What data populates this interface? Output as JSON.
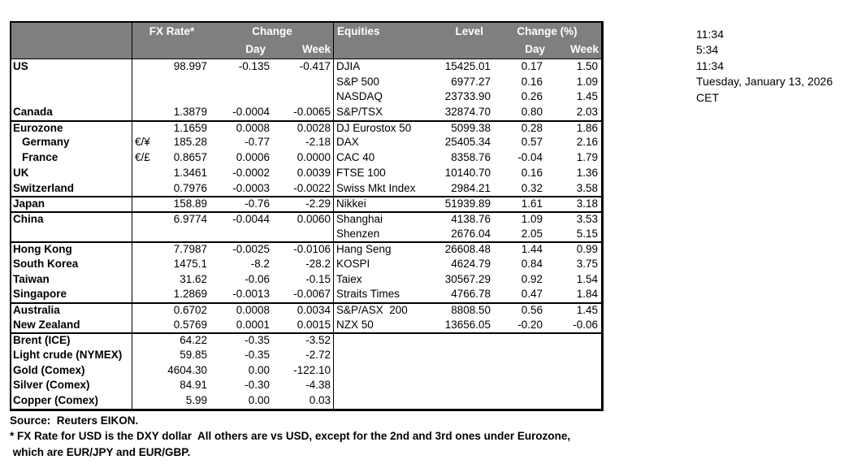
{
  "colors": {
    "header_bg": "#7f7f7f",
    "header_text": "#ffffff",
    "border": "#000000",
    "background": "#ffffff"
  },
  "table": {
    "header": {
      "fx_rate": "FX Rate*",
      "change": "Change",
      "day_fx": "Day",
      "week_fx": "Week",
      "equities": "Equities",
      "level": "Level",
      "change_pct": "Change (%)",
      "day_eq": "Day",
      "week_eq": "Week"
    },
    "rows": [
      {
        "country": "US",
        "indent": false,
        "sym": "",
        "rate": "98.997",
        "day": "-0.135",
        "week": "-0.417",
        "eq": "DJIA",
        "level": "15425.01",
        "eday": "0.17",
        "eweek": "1.50",
        "sep": false
      },
      {
        "country": "",
        "indent": false,
        "sym": "",
        "rate": "",
        "day": "",
        "week": "",
        "eq": "S&P 500",
        "level": "6977.27",
        "eday": "0.16",
        "eweek": "1.09",
        "sep": false
      },
      {
        "country": "",
        "indent": false,
        "sym": "",
        "rate": "",
        "day": "",
        "week": "",
        "eq": "NASDAQ",
        "level": "23733.90",
        "eday": "0.26",
        "eweek": "1.45",
        "sep": false
      },
      {
        "country": "Canada",
        "indent": false,
        "sym": "",
        "rate": "1.3879",
        "day": "-0.0004",
        "week": "-0.0065",
        "eq": "S&P/TSX",
        "level": "32874.70",
        "eday": "0.80",
        "eweek": "2.03",
        "sep": false
      },
      {
        "country": "Eurozone",
        "indent": false,
        "sym": "",
        "rate": "1.1659",
        "day": "0.0008",
        "week": "0.0028",
        "eq": "DJ Eurostox 50",
        "level": "5099.38",
        "eday": "0.28",
        "eweek": "1.86",
        "sep": true
      },
      {
        "country": "Germany",
        "indent": true,
        "sym": "€/¥",
        "rate": "185.28",
        "day": "-0.77",
        "week": "-2.18",
        "eq": "DAX",
        "level": "25405.34",
        "eday": "0.57",
        "eweek": "2.16",
        "sep": false
      },
      {
        "country": "France",
        "indent": true,
        "sym": "€/£",
        "rate": "0.8657",
        "day": "0.0006",
        "week": "0.0000",
        "eq": "CAC 40",
        "level": "8358.76",
        "eday": "-0.04",
        "eweek": "1.79",
        "sep": false
      },
      {
        "country": "UK",
        "indent": false,
        "sym": "",
        "rate": "1.3461",
        "day": "-0.0002",
        "week": "0.0039",
        "eq": "FTSE 100",
        "level": "10140.70",
        "eday": "0.16",
        "eweek": "1.36",
        "sep": false
      },
      {
        "country": "Switzerland",
        "indent": false,
        "sym": "",
        "rate": "0.7976",
        "day": "-0.0003",
        "week": "-0.0022",
        "eq": "Swiss Mkt Index",
        "level": "2984.21",
        "eday": "0.32",
        "eweek": "3.58",
        "sep": false
      },
      {
        "country": "Japan",
        "indent": false,
        "sym": "",
        "rate": "158.89",
        "day": "-0.76",
        "week": "-2.29",
        "eq": "Nikkei",
        "level": "51939.89",
        "eday": "1.61",
        "eweek": "3.18",
        "sep": true
      },
      {
        "country": "China",
        "indent": false,
        "sym": "",
        "rate": "6.9774",
        "day": "-0.0044",
        "week": "0.0060",
        "eq": "Shanghai",
        "level": "4138.76",
        "eday": "1.09",
        "eweek": "3.53",
        "sep": true
      },
      {
        "country": "",
        "indent": false,
        "sym": "",
        "rate": "",
        "day": "",
        "week": "",
        "eq": "Shenzen",
        "level": "2676.04",
        "eday": "2.05",
        "eweek": "5.15",
        "sep": false
      },
      {
        "country": "Hong Kong",
        "indent": false,
        "sym": "",
        "rate": "7.7987",
        "day": "-0.0025",
        "week": "-0.0106",
        "eq": "Hang Seng",
        "level": "26608.48",
        "eday": "1.44",
        "eweek": "0.99",
        "sep": true
      },
      {
        "country": "South Korea",
        "indent": false,
        "sym": "",
        "rate": "1475.1",
        "day": "-8.2",
        "week": "-28.2",
        "eq": "KOSPI",
        "level": "4624.79",
        "eday": "0.84",
        "eweek": "3.75",
        "sep": false
      },
      {
        "country": "Taiwan",
        "indent": false,
        "sym": "",
        "rate": "31.62",
        "day": "-0.06",
        "week": "-0.15",
        "eq": "Taiex",
        "level": "30567.29",
        "eday": "0.92",
        "eweek": "1.54",
        "sep": false
      },
      {
        "country": "Singapore",
        "indent": false,
        "sym": "",
        "rate": "1.2869",
        "day": "-0.0013",
        "week": "-0.0067",
        "eq": "Straits Times",
        "level": "4766.78",
        "eday": "0.47",
        "eweek": "1.84",
        "sep": false
      },
      {
        "country": "Australia",
        "indent": false,
        "sym": "",
        "rate": "0.6702",
        "day": "0.0008",
        "week": "0.0034",
        "eq": "S&P/ASX  200",
        "level": "8808.50",
        "eday": "0.56",
        "eweek": "1.45",
        "sep": true
      },
      {
        "country": "New Zealand",
        "indent": false,
        "sym": "",
        "rate": "0.5769",
        "day": "0.0001",
        "week": "0.0015",
        "eq": "NZX 50",
        "level": "13656.05",
        "eday": "-0.20",
        "eweek": "-0.06",
        "sep": false
      },
      {
        "country": "Brent (ICE)",
        "indent": false,
        "sym": "",
        "rate": "64.22",
        "day": "-0.35",
        "week": "-3.52",
        "eq": "",
        "level": "",
        "eday": "",
        "eweek": "",
        "sep": true
      },
      {
        "country": "Light crude (NYMEX)",
        "indent": false,
        "sym": "",
        "rate": "59.85",
        "day": "-0.35",
        "week": "-2.72",
        "eq": "",
        "level": "",
        "eday": "",
        "eweek": "",
        "sep": false
      },
      {
        "country": "Gold (Comex)",
        "indent": false,
        "sym": "",
        "rate": "4604.30",
        "day": "0.00",
        "week": "-122.10",
        "eq": "",
        "level": "",
        "eday": "",
        "eweek": "",
        "sep": false
      },
      {
        "country": "Silver (Comex)",
        "indent": false,
        "sym": "",
        "rate": "84.91",
        "day": "-0.30",
        "week": "-4.38",
        "eq": "",
        "level": "",
        "eday": "",
        "eweek": "",
        "sep": false
      },
      {
        "country": "Copper (Comex)",
        "indent": false,
        "sym": "",
        "rate": "5.99",
        "day": "0.00",
        "week": "0.03",
        "eq": "",
        "level": "",
        "eday": "",
        "eweek": "",
        "sep": false
      }
    ]
  },
  "timestamps": {
    "lines": [
      "11:34",
      "5:34",
      "11:34",
      "Tuesday, January 13, 2026",
      "CET"
    ]
  },
  "footer": {
    "lines": [
      "Source:  Reuters EIKON.",
      "* FX Rate for USD is the DXY dollar  All others are vs USD, except for the 2nd and 3rd ones under Eurozone,",
      " which are EUR/JPY and EUR/GBP."
    ]
  }
}
